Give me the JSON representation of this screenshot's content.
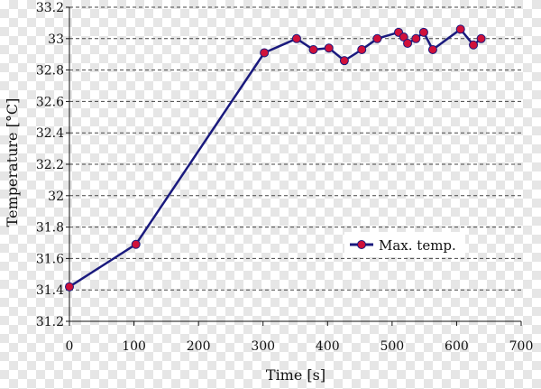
{
  "chart_data": {
    "type": "line",
    "title": "",
    "xlabel": "Time [s]",
    "ylabel": "Temperature [°C]",
    "xlim": [
      0,
      700
    ],
    "ylim": [
      31.2,
      33.2
    ],
    "xticks": [
      0,
      100,
      200,
      300,
      400,
      500,
      600,
      700
    ],
    "yticks": [
      31.2,
      31.4,
      31.6,
      31.8,
      32,
      32.2,
      32.4,
      32.6,
      32.8,
      33,
      33.2
    ],
    "grid": "horizontal dashed",
    "legend_position": "right-middle",
    "series": [
      {
        "name": "Max. temp.",
        "line_color": "#1a1a7e",
        "marker_color": "#d0103a",
        "x": [
          0,
          103,
          302,
          352,
          378,
          402,
          426,
          453,
          477,
          510,
          518,
          524,
          537,
          549,
          563,
          606,
          626,
          638
        ],
        "y": [
          31.42,
          31.69,
          32.91,
          33.0,
          32.93,
          32.94,
          32.86,
          32.93,
          33.0,
          33.04,
          33.01,
          32.97,
          33.0,
          33.04,
          32.93,
          33.06,
          32.96,
          33.0
        ]
      }
    ]
  }
}
